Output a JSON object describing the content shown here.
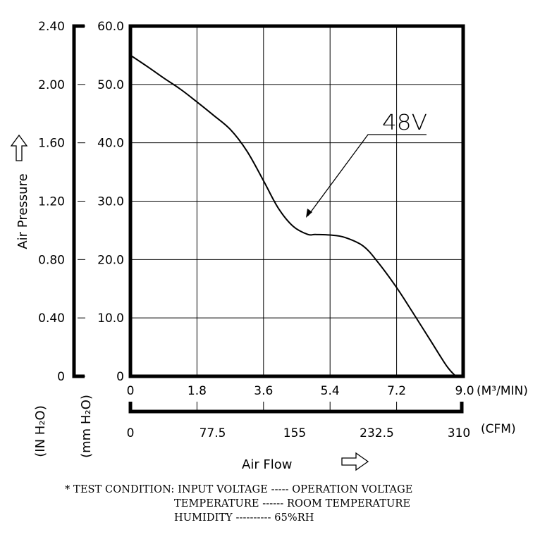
{
  "chart_data": {
    "type": "line",
    "series": [
      {
        "name": "48V",
        "x": [
          0,
          0.45,
          0.9,
          1.35,
          1.8,
          2.25,
          2.7,
          3.15,
          3.6,
          4.0,
          4.4,
          4.8,
          5.0,
          5.4,
          5.8,
          6.3,
          6.7,
          7.2,
          7.65,
          8.1,
          8.55,
          8.8
        ],
        "y": [
          55.0,
          53.1,
          51.1,
          49.2,
          47.0,
          44.7,
          42.3,
          38.6,
          33.5,
          28.8,
          25.7,
          24.3,
          24.3,
          24.2,
          23.8,
          22.3,
          19.5,
          15.2,
          10.8,
          6.3,
          1.8,
          0.0
        ]
      }
    ],
    "xlim": [
      0,
      9.0
    ],
    "ylim": [
      0,
      60
    ],
    "x_ticks": [
      "0",
      "1.8",
      "3.6",
      "5.4",
      "7.2",
      "9.0"
    ],
    "x_unit": "(M³/MIN)",
    "cfm_ticks": [
      "0",
      "77.5",
      "155",
      "232.5",
      "310"
    ],
    "cfm_unit": "(CFM)",
    "y_ticks_mm": [
      "0",
      "10.0",
      "20.0",
      "30.0",
      "40.0",
      "50.0",
      "60.0"
    ],
    "y_ticks_in": [
      "0",
      "0.40",
      "0.80",
      "1.20",
      "1.60",
      "2.00",
      "2.40"
    ],
    "ylabel": "Air Pressure",
    "xlabel": "Air Flow",
    "unit_in": "(IN H₂O)",
    "unit_mm": "(mm H₂O)",
    "annotation": "48V",
    "grid": true
  },
  "notes": {
    "line1": "* TEST CONDITION: INPUT VOLTAGE ----- OPERATION VOLTAGE",
    "line2": "TEMPERATURE ------ ROOM TEMPERATURE",
    "line3": "HUMIDITY ---------- 65%RH"
  }
}
